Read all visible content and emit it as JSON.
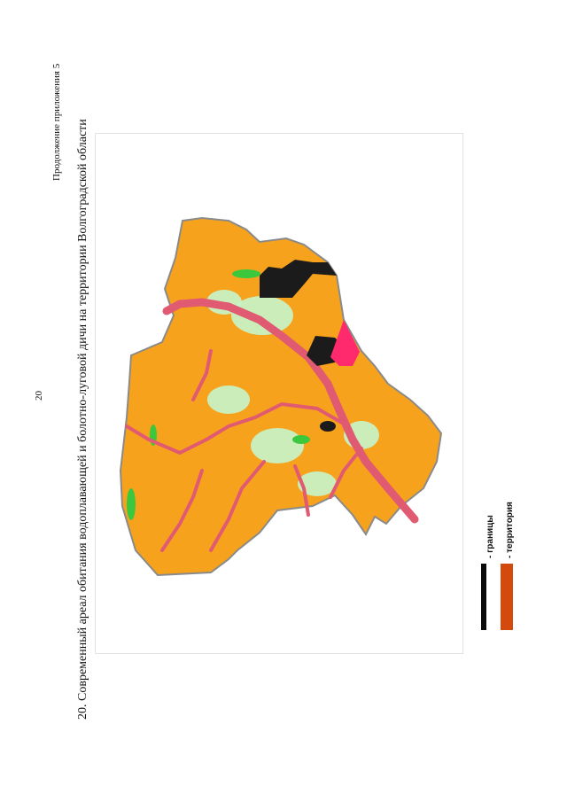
{
  "page": {
    "page_number": "20",
    "appendix_note": "Продолжение приложения 5",
    "caption": "20. Современный ареал обитания водоплавающей и болотно-луговой дичи на территории Волгоградской области"
  },
  "legend": {
    "items": [
      {
        "label": "- границы",
        "color": "#0a0a0a"
      },
      {
        "label": "- территория",
        "color": "#d44a0c"
      }
    ]
  },
  "map": {
    "colors": {
      "habitat": "#f7a21c",
      "rivers": "#e05a72",
      "urban": "#ff2a6d",
      "black_areas": "#1b1b1b",
      "meadows": "#c4f5cb",
      "forests": "#3cc83c",
      "district_borders": "#8a8a8a"
    }
  }
}
